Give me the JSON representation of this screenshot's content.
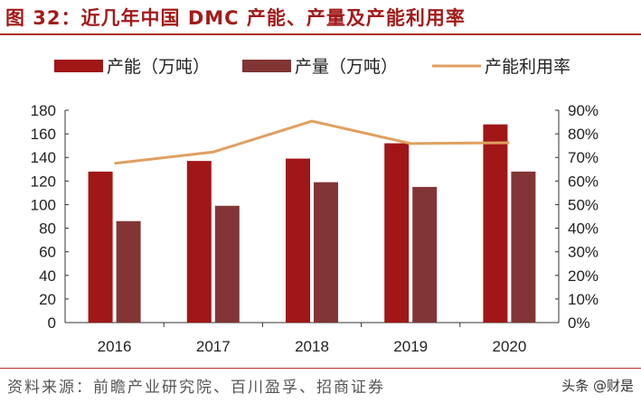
{
  "title": "图 32：近几年中国 DMC 产能、产量及产能利用率",
  "source": "资料来源：前瞻产业研究院、百川盈孚、招商证券",
  "watermark": "头条 @财是",
  "chart_data": {
    "type": "bar",
    "categories": [
      "2016",
      "2017",
      "2018",
      "2019",
      "2020"
    ],
    "series": [
      {
        "name": "产能（万吨）",
        "type": "bar",
        "axis": "left",
        "color": "#a11616",
        "values": [
          128,
          137,
          139,
          152,
          168
        ]
      },
      {
        "name": "产量（万吨）",
        "type": "bar",
        "axis": "left",
        "color": "#823535",
        "values": [
          86,
          99,
          119,
          115,
          128
        ]
      },
      {
        "name": "产能利用率",
        "type": "line",
        "axis": "right",
        "color": "#e0a060",
        "values": [
          67.5,
          72.3,
          85.4,
          75.9,
          76.2
        ]
      }
    ],
    "ylim": [
      0,
      180
    ],
    "yticks": [
      "0",
      "20",
      "40",
      "60",
      "80",
      "100",
      "120",
      "140",
      "160",
      "180"
    ],
    "y2lim": [
      0,
      90
    ],
    "y2ticks": [
      "0%",
      "10%",
      "20%",
      "30%",
      "40%",
      "50%",
      "60%",
      "70%",
      "80%",
      "90%"
    ],
    "grid": false,
    "legend": "top"
  }
}
